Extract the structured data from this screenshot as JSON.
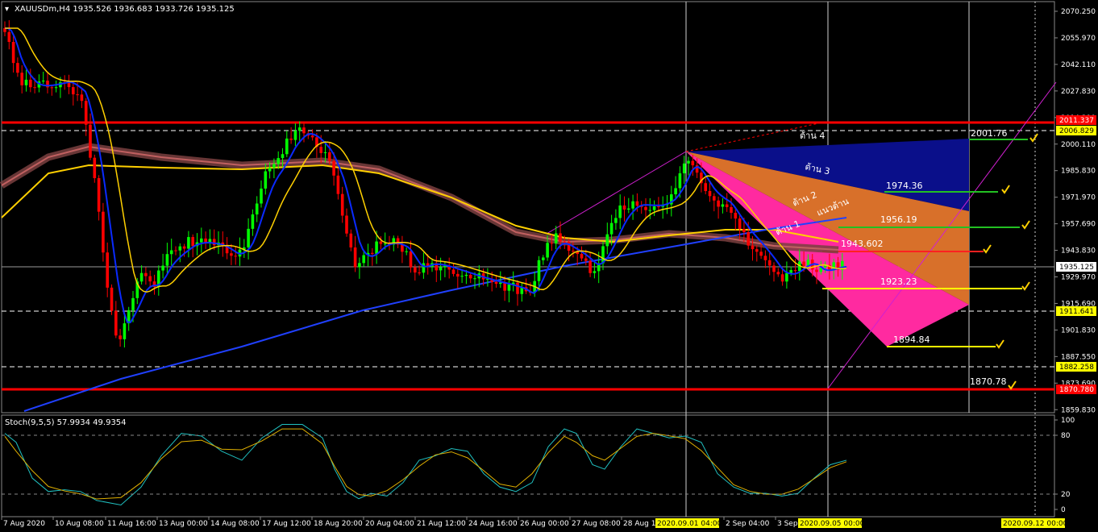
{
  "header": {
    "main_title": "XAUUSDm,H4  1935.526 1936.683 1933.726 1935.125",
    "stoch_title": "Stoch(9,5,5) 57.9934 49.9354"
  },
  "price_axis": [
    "2070.250",
    "2055.970",
    "2042.110",
    "2027.830",
    "2014.390",
    "2000.110",
    "1985.830",
    "1971.970",
    "1957.690",
    "1943.830",
    "1929.970",
    "1915.690",
    "1901.830",
    "1887.550",
    "1873.690",
    "1859.830"
  ],
  "stoch_axis": [
    "100",
    "80",
    "20",
    "0"
  ],
  "time_axis": [
    "7 Aug 2020",
    "10 Aug 08:00",
    "11 Aug 16:00",
    "13 Aug 00:00",
    "14 Aug 08:00",
    "17 Aug 12:00",
    "18 Aug 20:00",
    "20 Aug 04:00",
    "21 Aug 12:00",
    "24 Aug 16:00",
    "26 Aug 00:00",
    "27 Aug 08:00",
    "28 Aug 16:00",
    "2 Sep 04:00",
    "3 Sep"
  ],
  "time_markers": [
    "2020.09.01 04:00",
    "2020.09.05 00:00",
    "2020.09.12 00:00"
  ],
  "axis_tags": [
    {
      "text": "2011.337",
      "kind": "red"
    },
    {
      "text": "2006.829",
      "kind": "yellow"
    },
    {
      "text": "1935.125",
      "kind": "white"
    },
    {
      "text": "1911.641",
      "kind": "yellow"
    },
    {
      "text": "1882.258",
      "kind": "yellow"
    },
    {
      "text": "1870.780",
      "kind": "red"
    }
  ],
  "fib_labels": [
    "2001.76",
    "1974.36",
    "1956.19",
    "1943.602",
    "1923.23",
    "1894.84",
    "1870.78"
  ],
  "resistance_labels": [
    "ต้าน 4",
    "ต้าน 3",
    "ต้าน 2",
    "ต้าน 1",
    "แนวต้าน"
  ],
  "colors": {
    "bull": "#00ff00",
    "bear": "#ff0000",
    "ma_fast": "#0000ff",
    "ma_slow": "#ffd000",
    "red_line": "#ff0000"
  }
}
